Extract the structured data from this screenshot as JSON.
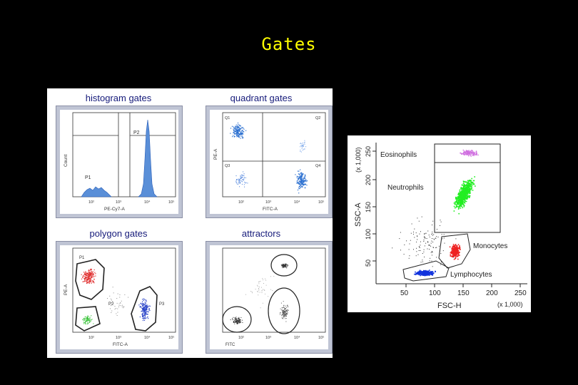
{
  "slide": {
    "title": "Gates"
  },
  "panels": {
    "histogram": {
      "title": "histogram gates",
      "gate_labels": [
        "P1",
        "P2"
      ],
      "xlabel": "PE-Cy7-A",
      "ylabel": "Count",
      "xticks": [
        "10²",
        "10³",
        "10⁴",
        "10⁵"
      ]
    },
    "quadrant": {
      "title": "quadrant gates",
      "quad_labels": [
        "Q1",
        "Q2",
        "Q3",
        "Q4"
      ],
      "xlabel": "FITC-A",
      "ylabel": "PE-A",
      "xticks": [
        "10²",
        "10³",
        "10⁴",
        "10⁵"
      ]
    },
    "polygon": {
      "title": "polygon gates",
      "gate_labels": [
        "P1",
        "P2",
        "P3"
      ],
      "xlabel": "FITC-A",
      "ylabel": "PE-A",
      "xticks": [
        "10²",
        "10³",
        "10⁴",
        "10⁵"
      ]
    },
    "attractors": {
      "title": "attractors",
      "xlabel": "FITC",
      "xticks": [
        "10²",
        "10³",
        "10⁴",
        "10⁵"
      ]
    }
  },
  "scatter": {
    "populations": [
      "Eosinophils",
      "Neutrophils",
      "Monocytes",
      "Lymphocytes"
    ],
    "xlabel": "FSC-H",
    "ylabel": "SSC-A",
    "xscale": "(x 1,000)",
    "yscale": "(x 1,000)",
    "xticks": [
      "50",
      "100",
      "150",
      "200",
      "250"
    ],
    "yticks": [
      "50",
      "100",
      "150",
      "200",
      "250"
    ],
    "colors": {
      "eosinophils": "#d070e0",
      "neutrophils": "#22ee22",
      "monocytes": "#ee2222",
      "lymphocytes": "#1133dd"
    }
  }
}
